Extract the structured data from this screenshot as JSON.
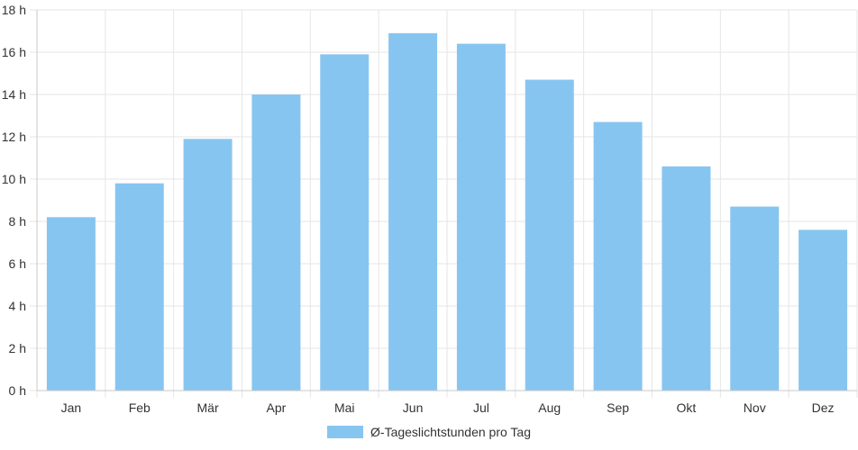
{
  "chart_data": {
    "type": "bar",
    "categories": [
      "Jan",
      "Feb",
      "Mär",
      "Apr",
      "Mai",
      "Jun",
      "Jul",
      "Aug",
      "Sep",
      "Okt",
      "Nov",
      "Dez"
    ],
    "series": [
      {
        "name": "Ø-Tageslichtstunden pro Tag",
        "values": [
          8.2,
          9.8,
          11.9,
          14.0,
          15.9,
          16.9,
          16.4,
          14.7,
          12.7,
          10.6,
          8.7,
          7.6
        ],
        "color": "#87c5f1"
      }
    ],
    "y_ticks": [
      "0 h",
      "2 h",
      "4 h",
      "6 h",
      "8 h",
      "10 h",
      "12 h",
      "14 h",
      "16 h",
      "18 h"
    ],
    "ylim": [
      0,
      18
    ],
    "grid": true,
    "legend_position": "bottom"
  }
}
